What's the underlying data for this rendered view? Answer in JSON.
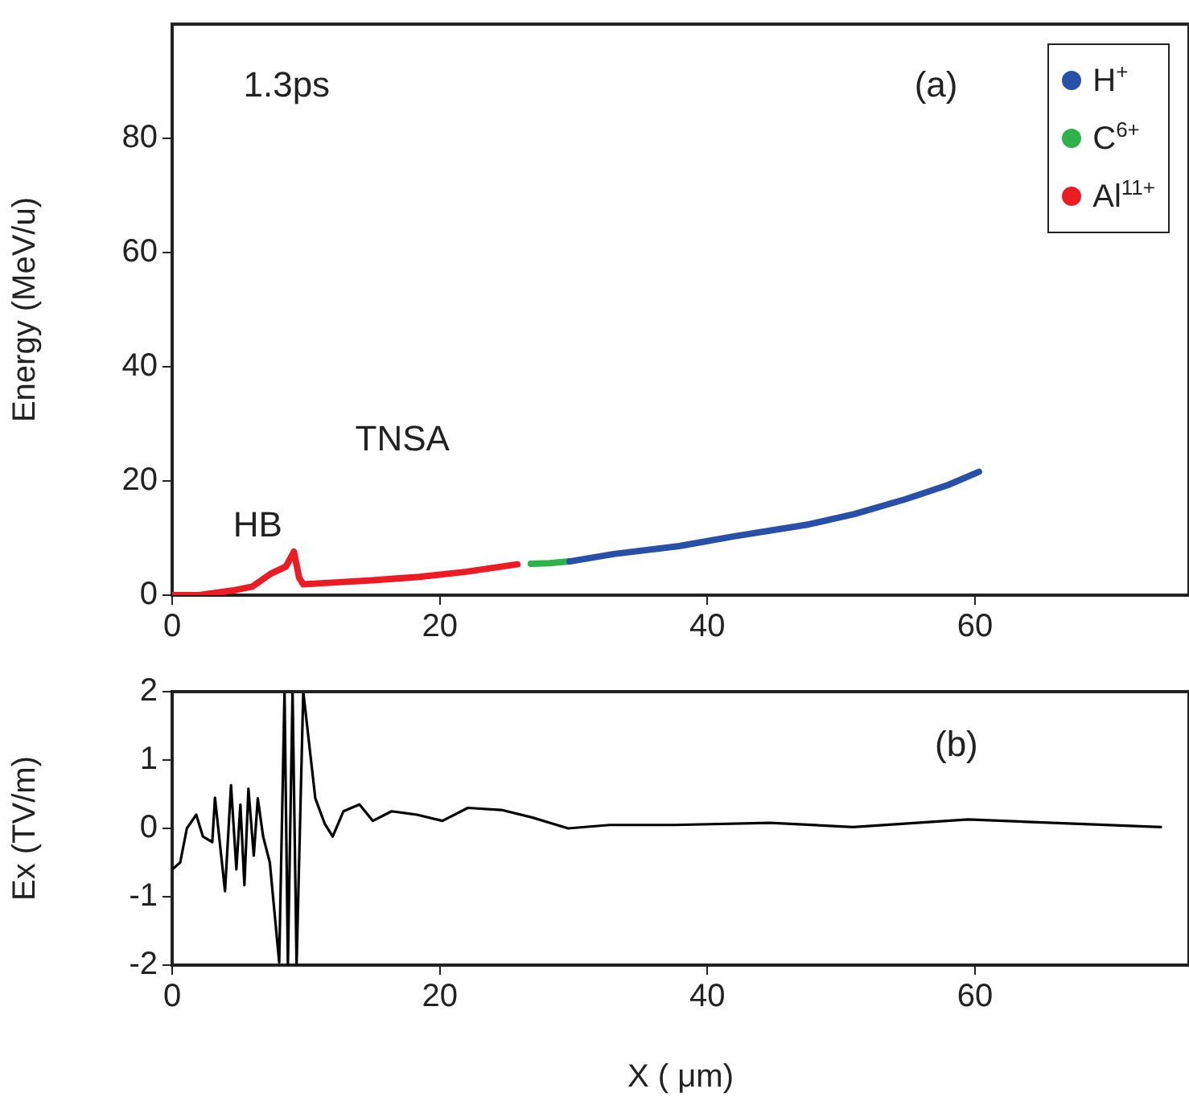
{
  "chart_data": [
    {
      "type": "line",
      "ylabel": "Energy (MeV/u)",
      "xlim": [
        0,
        76
      ],
      "xticks": [
        0,
        20,
        40,
        60
      ],
      "ylim": [
        0,
        100
      ],
      "yticks": [
        0,
        20,
        40,
        60,
        80
      ],
      "grid": false,
      "legend": "top right",
      "annotations": [
        "1.3ps",
        "(a)",
        "TNSA",
        "HB"
      ],
      "series": [
        {
          "name": "H$^{+}$",
          "color": "#2850a8",
          "x": [
            29.7,
            33,
            37.9,
            42,
            47.6,
            51,
            54.8,
            58,
            60.3
          ],
          "values": [
            5.9,
            7.2,
            8.6,
            10.3,
            12.4,
            14.2,
            16.8,
            19.3,
            21.6
          ]
        },
        {
          "name": "C$^{6+}$",
          "color": "#2db34a",
          "x": [
            26.8,
            28.2,
            29.7
          ],
          "values": [
            5.5,
            5.6,
            5.9
          ]
        },
        {
          "name": "Al$^{11+}$",
          "color": "#ed1c24",
          "x": [
            0,
            2,
            4.5,
            6,
            7.4,
            8.5,
            9.1,
            9.5,
            9.8,
            12,
            15,
            18.5,
            22,
            25.8
          ],
          "values": [
            0,
            0,
            0.8,
            1.5,
            3.8,
            5,
            7.6,
            3,
            1.9,
            2.2,
            2.6,
            3.2,
            4.1,
            5.4
          ]
        }
      ]
    },
    {
      "type": "line",
      "xlabel": "X ( μm)",
      "ylabel": "Ex (TV/m)",
      "xlim": [
        0,
        76
      ],
      "xticks": [
        0,
        20,
        40,
        60
      ],
      "ylim": [
        -2,
        2
      ],
      "yticks": [
        -2,
        -1,
        0,
        1,
        2
      ],
      "grid": false,
      "annotations": [
        "(b)"
      ],
      "series": [
        {
          "color": "#000000",
          "x": [
            0,
            0.6,
            1.1,
            1.8,
            2.3,
            3,
            3.2,
            3.95,
            4.4,
            4.8,
            5.1,
            5.4,
            5.7,
            6.1,
            6.4,
            6.8,
            7.3,
            8,
            8.4,
            8.65,
            9,
            9.3,
            9.8,
            10.7,
            11.4,
            12,
            12.8,
            14,
            15,
            16.4,
            18.3,
            20.2,
            22.1,
            24.6,
            26.9,
            29.6,
            32.7,
            37.5,
            44.7,
            50.9,
            59.5,
            73.9
          ],
          "values": [
            -0.6,
            -0.5,
            0,
            0.2,
            -0.12,
            -0.2,
            0.45,
            -0.92,
            0.63,
            -0.6,
            0.35,
            -0.83,
            0.58,
            -0.4,
            0.44,
            -0.12,
            -0.5,
            -1.96,
            2,
            -2,
            2,
            -2,
            2,
            0.44,
            0.07,
            -0.12,
            0.25,
            0.35,
            0.11,
            0.25,
            0.2,
            0.11,
            0.3,
            0.27,
            0.16,
            0,
            0.05,
            0.05,
            0.08,
            0.02,
            0.13,
            0.02
          ]
        }
      ]
    }
  ]
}
